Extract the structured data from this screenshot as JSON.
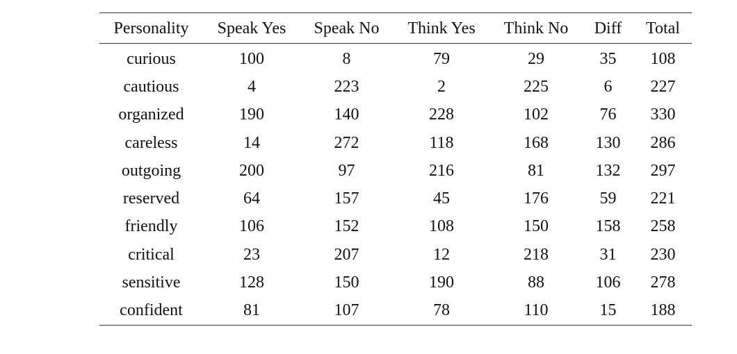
{
  "table": {
    "headers": [
      "Personality",
      "Speak Yes",
      "Speak No",
      "Think Yes",
      "Think No",
      "Diff",
      "Total"
    ],
    "rows": [
      [
        "curious",
        "100",
        "8",
        "79",
        "29",
        "35",
        "108"
      ],
      [
        "cautious",
        "4",
        "223",
        "2",
        "225",
        "6",
        "227"
      ],
      [
        "organized",
        "190",
        "140",
        "228",
        "102",
        "76",
        "330"
      ],
      [
        "careless",
        "14",
        "272",
        "118",
        "168",
        "130",
        "286"
      ],
      [
        "outgoing",
        "200",
        "97",
        "216",
        "81",
        "132",
        "297"
      ],
      [
        "reserved",
        "64",
        "157",
        "45",
        "176",
        "59",
        "221"
      ],
      [
        "friendly",
        "106",
        "152",
        "108",
        "150",
        "158",
        "258"
      ],
      [
        "critical",
        "23",
        "207",
        "12",
        "218",
        "31",
        "230"
      ],
      [
        "sensitive",
        "128",
        "150",
        "190",
        "88",
        "106",
        "278"
      ],
      [
        "confident",
        "81",
        "107",
        "78",
        "110",
        "15",
        "188"
      ]
    ]
  }
}
